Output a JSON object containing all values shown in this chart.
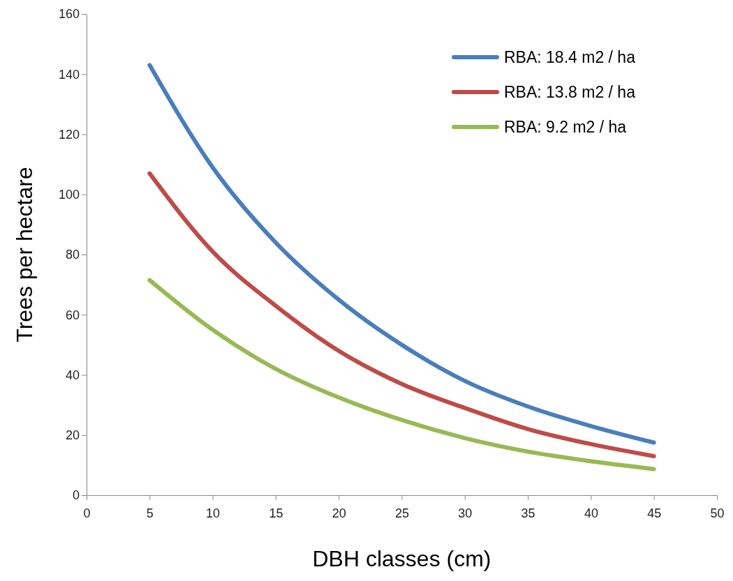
{
  "chart_data": {
    "type": "line",
    "xlabel": "DBH classes (cm)",
    "ylabel": "Trees per hectare",
    "x": [
      5,
      10,
      15,
      20,
      25,
      30,
      35,
      40,
      45
    ],
    "series": [
      {
        "name": "RBA: 18.4 m2 / ha",
        "color": "#4a7ebb",
        "values": [
          143,
          109,
          84,
          65,
          50,
          38,
          29.5,
          23,
          17.5
        ]
      },
      {
        "name": "RBA: 13.8 m2 / ha",
        "color": "#be4b48",
        "values": [
          107,
          81,
          63,
          48,
          37,
          29,
          22,
          17,
          13
        ]
      },
      {
        "name": "RBA: 9.2 m2 / ha",
        "color": "#98b954",
        "values": [
          71.5,
          55,
          42,
          32.5,
          25,
          19,
          14.5,
          11.3,
          8.7
        ]
      }
    ],
    "xlim": [
      0,
      50
    ],
    "xticks": [
      0,
      5,
      10,
      15,
      20,
      25,
      30,
      35,
      40,
      45,
      50
    ],
    "ylim": [
      0,
      160
    ],
    "yticks": [
      0,
      20,
      40,
      60,
      80,
      100,
      120,
      140,
      160
    ],
    "grid": false,
    "legend": "top right",
    "marker": "none",
    "line_style": "solid"
  }
}
